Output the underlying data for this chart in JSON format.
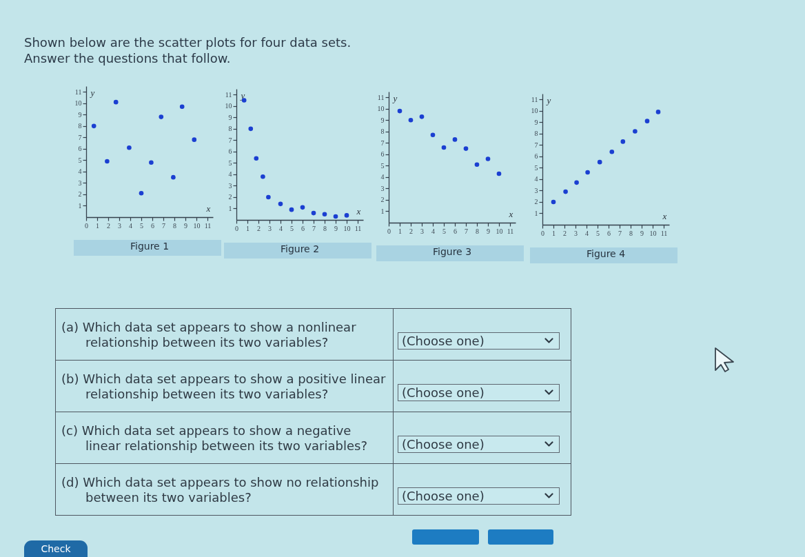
{
  "chart_data": [
    {
      "type": "other",
      "title": "Shown below are the scatter plots for four data sets.",
      "subtitle": "Answer the questions that follow."
    },
    {
      "type": "scatter",
      "title": "Figure 1",
      "xlabel": "x",
      "ylabel": "y",
      "x": [
        0.7,
        1.9,
        2.7,
        3.9,
        5.0,
        5.9,
        6.8,
        7.9,
        8.7,
        9.8
      ],
      "values": [
        8.0,
        4.9,
        10.1,
        6.1,
        2.1,
        4.8,
        8.8,
        3.5,
        9.7,
        6.8
      ],
      "color": "#1b3fd1",
      "marker": "circle",
      "xlim": [
        0,
        11.5
      ],
      "ylim": [
        0,
        11.5
      ],
      "xticks": [
        0,
        1,
        2,
        3,
        4,
        5,
        6,
        7,
        8,
        9,
        10,
        11
      ],
      "yticks": [
        1,
        2,
        3,
        4,
        5,
        6,
        7,
        8,
        9,
        10,
        11
      ]
    },
    {
      "type": "scatter",
      "title": "Figure 2",
      "xlabel": "x",
      "ylabel": "y",
      "x": [
        0.7,
        1.3,
        1.8,
        2.4,
        2.9,
        4.0,
        5.0,
        6.0,
        7.0,
        8.0,
        9.0,
        10.0
      ],
      "values": [
        10.5,
        8.0,
        5.4,
        3.8,
        2.0,
        1.4,
        0.9,
        1.1,
        0.6,
        0.5,
        0.3,
        0.4
      ],
      "color": "#1b3fd1",
      "marker": "circle",
      "xlim": [
        0,
        11.5
      ],
      "ylim": [
        0,
        11.5
      ],
      "xticks": [
        0,
        1,
        2,
        3,
        4,
        5,
        6,
        7,
        8,
        9,
        10,
        11
      ],
      "yticks": [
        1,
        2,
        3,
        4,
        5,
        6,
        7,
        8,
        9,
        10,
        11
      ]
    },
    {
      "type": "scatter",
      "title": "Figure 3",
      "xlabel": "x",
      "ylabel": "y",
      "x": [
        1,
        2,
        3,
        4,
        5,
        6,
        7,
        8,
        9,
        10
      ],
      "values": [
        9.8,
        9.0,
        9.3,
        7.7,
        6.6,
        7.3,
        6.5,
        5.1,
        5.6,
        4.3
      ],
      "color": "#1b3fd1",
      "marker": "circle",
      "xlim": [
        0,
        11.5
      ],
      "ylim": [
        0,
        11.5
      ],
      "xticks": [
        0,
        1,
        2,
        3,
        4,
        5,
        6,
        7,
        8,
        9,
        10,
        11
      ],
      "yticks": [
        1,
        2,
        3,
        4,
        5,
        6,
        7,
        8,
        9,
        10,
        11
      ]
    },
    {
      "type": "scatter",
      "title": "Figure 4",
      "xlabel": "x",
      "ylabel": "y",
      "x": [
        1.0,
        2.1,
        3.1,
        4.1,
        5.2,
        6.3,
        7.3,
        8.4,
        9.5,
        10.5
      ],
      "values": [
        2.0,
        2.9,
        3.7,
        4.6,
        5.5,
        6.4,
        7.3,
        8.2,
        9.1,
        9.9
      ],
      "color": "#1b3fd1",
      "marker": "circle",
      "xlim": [
        0,
        11.5
      ],
      "ylim": [
        0,
        11.5
      ],
      "xticks": [
        0,
        1,
        2,
        3,
        4,
        5,
        6,
        7,
        8,
        9,
        10,
        11
      ],
      "yticks": [
        1,
        2,
        3,
        4,
        5,
        6,
        7,
        8,
        9,
        10,
        11
      ]
    },
    {
      "type": "other",
      "annotations": [
        "(a) Which data set appears to show a nonlinear relationship between its two variables?",
        "(Choose one)",
        "(b) Which data set appears to show a positive linear relationship between its two variables?",
        "(Choose one)",
        "(c) Which data set appears to show a negative linear relationship between its two variables?",
        "(Choose one)",
        "(d) Which data set appears to show no relationship between its two variables?",
        "(Choose one)"
      ]
    },
    {
      "type": "other",
      "annotations": [
        "Check"
      ]
    }
  ]
}
